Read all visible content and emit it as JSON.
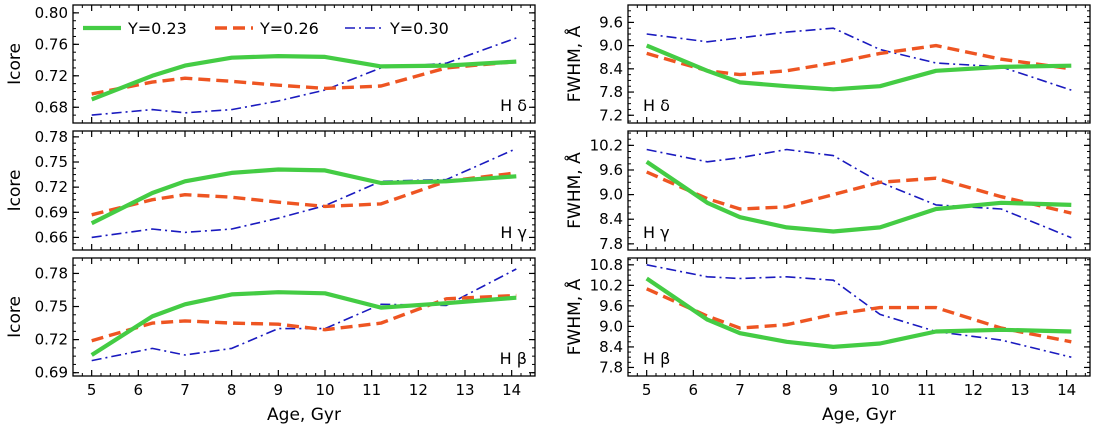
{
  "chart_data": [
    {
      "type": "line",
      "column": "left",
      "row": 0,
      "ylabel": "Icore",
      "xlabel": "",
      "panel_label": "H δ",
      "xlim": [
        4.6,
        14.5
      ],
      "ylim": [
        0.66,
        0.81
      ],
      "xticks": [
        5,
        6,
        7,
        8,
        9,
        10,
        11,
        12,
        13,
        14
      ],
      "yticks": [
        0.68,
        0.72,
        0.76,
        0.8
      ],
      "ytick_labels": [
        "0.68",
        "0.72",
        "0.76",
        "0.80"
      ],
      "x": [
        5,
        6.3,
        7,
        8,
        9,
        10,
        11.2,
        12.6,
        14.1
      ],
      "series": [
        {
          "name": "Y=0.23",
          "style": "solid",
          "values": [
            0.69,
            0.72,
            0.733,
            0.743,
            0.745,
            0.744,
            0.732,
            0.733,
            0.738
          ]
        },
        {
          "name": "Y=0.26",
          "style": "dashed",
          "values": [
            0.697,
            0.712,
            0.717,
            0.713,
            0.708,
            0.704,
            0.707,
            0.73,
            0.738
          ]
        },
        {
          "name": "Y=0.30",
          "style": "dashdot",
          "values": [
            0.67,
            0.677,
            0.673,
            0.677,
            0.688,
            0.702,
            0.73,
            0.736,
            0.768
          ]
        }
      ]
    },
    {
      "type": "line",
      "column": "left",
      "row": 1,
      "ylabel": "Icore",
      "xlabel": "",
      "panel_label": "H γ",
      "xlim": [
        4.6,
        14.5
      ],
      "ylim": [
        0.645,
        0.787
      ],
      "xticks": [
        5,
        6,
        7,
        8,
        9,
        10,
        11,
        12,
        13,
        14
      ],
      "yticks": [
        0.66,
        0.69,
        0.72,
        0.75,
        0.78
      ],
      "ytick_labels": [
        "0.66",
        "0.69",
        "0.72",
        "0.75",
        "0.78"
      ],
      "x": [
        5,
        6.3,
        7,
        8,
        9,
        10,
        11.2,
        12.6,
        14.1
      ],
      "series": [
        {
          "name": "Y=0.23",
          "style": "solid",
          "values": [
            0.677,
            0.713,
            0.727,
            0.737,
            0.741,
            0.74,
            0.725,
            0.727,
            0.733
          ]
        },
        {
          "name": "Y=0.26",
          "style": "dashed",
          "values": [
            0.687,
            0.705,
            0.711,
            0.708,
            0.702,
            0.697,
            0.7,
            0.727,
            0.737
          ]
        },
        {
          "name": "Y=0.30",
          "style": "dashdot",
          "values": [
            0.66,
            0.67,
            0.666,
            0.67,
            0.683,
            0.698,
            0.727,
            0.729,
            0.766
          ]
        }
      ]
    },
    {
      "type": "line",
      "column": "left",
      "row": 2,
      "ylabel": "Icore",
      "xlabel": "Age, Gyr",
      "panel_label": "H β",
      "xlim": [
        4.6,
        14.5
      ],
      "ylim": [
        0.687,
        0.794
      ],
      "xticks": [
        5,
        6,
        7,
        8,
        9,
        10,
        11,
        12,
        13,
        14
      ],
      "yticks": [
        0.69,
        0.72,
        0.75,
        0.78
      ],
      "ytick_labels": [
        "0.69",
        "0.72",
        "0.75",
        "0.78"
      ],
      "x": [
        5,
        6.3,
        7,
        8,
        9,
        10,
        11.2,
        12.6,
        14.1
      ],
      "series": [
        {
          "name": "Y=0.23",
          "style": "solid",
          "values": [
            0.706,
            0.741,
            0.752,
            0.761,
            0.763,
            0.762,
            0.749,
            0.753,
            0.758
          ]
        },
        {
          "name": "Y=0.26",
          "style": "dashed",
          "values": [
            0.719,
            0.735,
            0.737,
            0.735,
            0.734,
            0.729,
            0.735,
            0.757,
            0.76
          ]
        },
        {
          "name": "Y=0.30",
          "style": "dashdot",
          "values": [
            0.701,
            0.712,
            0.706,
            0.712,
            0.73,
            0.73,
            0.752,
            0.751,
            0.784
          ]
        }
      ]
    },
    {
      "type": "line",
      "column": "right",
      "row": 0,
      "ylabel": "FWHM, Å",
      "xlabel": "",
      "panel_label": "H δ",
      "xlim": [
        4.6,
        14.5
      ],
      "ylim": [
        7.0,
        10.05
      ],
      "xticks": [
        5,
        6,
        7,
        8,
        9,
        10,
        11,
        12,
        13,
        14
      ],
      "yticks": [
        7.2,
        7.8,
        8.4,
        9.0,
        9.6
      ],
      "ytick_labels": [
        "7.2",
        "7.8",
        "8.4",
        "9.0",
        "9.6"
      ],
      "x": [
        5,
        6.3,
        7,
        8,
        9,
        10,
        11.2,
        12.6,
        14.1
      ],
      "series": [
        {
          "name": "Y=0.23",
          "style": "solid",
          "values": [
            9.0,
            8.35,
            8.05,
            7.95,
            7.87,
            7.95,
            8.35,
            8.45,
            8.48
          ]
        },
        {
          "name": "Y=0.26",
          "style": "dashed",
          "values": [
            8.8,
            8.35,
            8.25,
            8.35,
            8.55,
            8.8,
            9.0,
            8.65,
            8.4
          ]
        },
        {
          "name": "Y=0.30",
          "style": "dashdot",
          "values": [
            9.3,
            9.1,
            9.2,
            9.35,
            9.45,
            8.9,
            8.55,
            8.45,
            7.85
          ]
        }
      ]
    },
    {
      "type": "line",
      "column": "right",
      "row": 1,
      "ylabel": "FWHM, Å",
      "xlabel": "",
      "panel_label": "H γ",
      "xlim": [
        4.6,
        14.5
      ],
      "ylim": [
        7.65,
        10.55
      ],
      "xticks": [
        5,
        6,
        7,
        8,
        9,
        10,
        11,
        12,
        13,
        14
      ],
      "yticks": [
        7.8,
        8.4,
        9.0,
        9.6,
        10.2
      ],
      "ytick_labels": [
        "7.8",
        "8.4",
        "9.0",
        "9.6",
        "10.2"
      ],
      "x": [
        5,
        6.3,
        7,
        8,
        9,
        10,
        11.2,
        12.6,
        14.1
      ],
      "series": [
        {
          "name": "Y=0.23",
          "style": "solid",
          "values": [
            9.8,
            8.8,
            8.45,
            8.2,
            8.1,
            8.2,
            8.65,
            8.8,
            8.75
          ]
        },
        {
          "name": "Y=0.26",
          "style": "dashed",
          "values": [
            9.55,
            8.9,
            8.65,
            8.7,
            9.0,
            9.3,
            9.4,
            8.95,
            8.55
          ]
        },
        {
          "name": "Y=0.30",
          "style": "dashdot",
          "values": [
            10.1,
            9.8,
            9.9,
            10.1,
            9.95,
            9.3,
            8.75,
            8.65,
            7.95
          ]
        }
      ]
    },
    {
      "type": "line",
      "column": "right",
      "row": 2,
      "ylabel": "FWHM, Å",
      "xlabel": "Age, Gyr",
      "panel_label": "H β",
      "xlim": [
        4.6,
        14.5
      ],
      "ylim": [
        7.55,
        11.0
      ],
      "xticks": [
        5,
        6,
        7,
        8,
        9,
        10,
        11,
        12,
        13,
        14
      ],
      "yticks": [
        7.8,
        8.4,
        9.0,
        9.6,
        10.2,
        10.8
      ],
      "ytick_labels": [
        "7.8",
        "8.4",
        "9.0",
        "9.6",
        "10.2",
        "10.8"
      ],
      "x": [
        5,
        6.3,
        7,
        8,
        9,
        10,
        11.2,
        12.6,
        14.1
      ],
      "series": [
        {
          "name": "Y=0.23",
          "style": "solid",
          "values": [
            10.4,
            9.2,
            8.8,
            8.55,
            8.4,
            8.5,
            8.85,
            8.9,
            8.85
          ]
        },
        {
          "name": "Y=0.26",
          "style": "dashed",
          "values": [
            10.1,
            9.3,
            8.95,
            9.05,
            9.35,
            9.55,
            9.55,
            8.95,
            8.55
          ]
        },
        {
          "name": "Y=0.30",
          "style": "dashdot",
          "values": [
            10.8,
            10.45,
            10.4,
            10.45,
            10.35,
            9.35,
            8.85,
            8.6,
            8.1
          ]
        }
      ]
    }
  ],
  "legend": {
    "placement": "top-left of first panel",
    "entries": [
      "Y=0.23",
      "Y=0.26",
      "Y=0.30"
    ]
  },
  "colors": {
    "Y=0.23": "#44cc44",
    "Y=0.26": "#ee5522",
    "Y=0.30": "#1a1abf"
  }
}
